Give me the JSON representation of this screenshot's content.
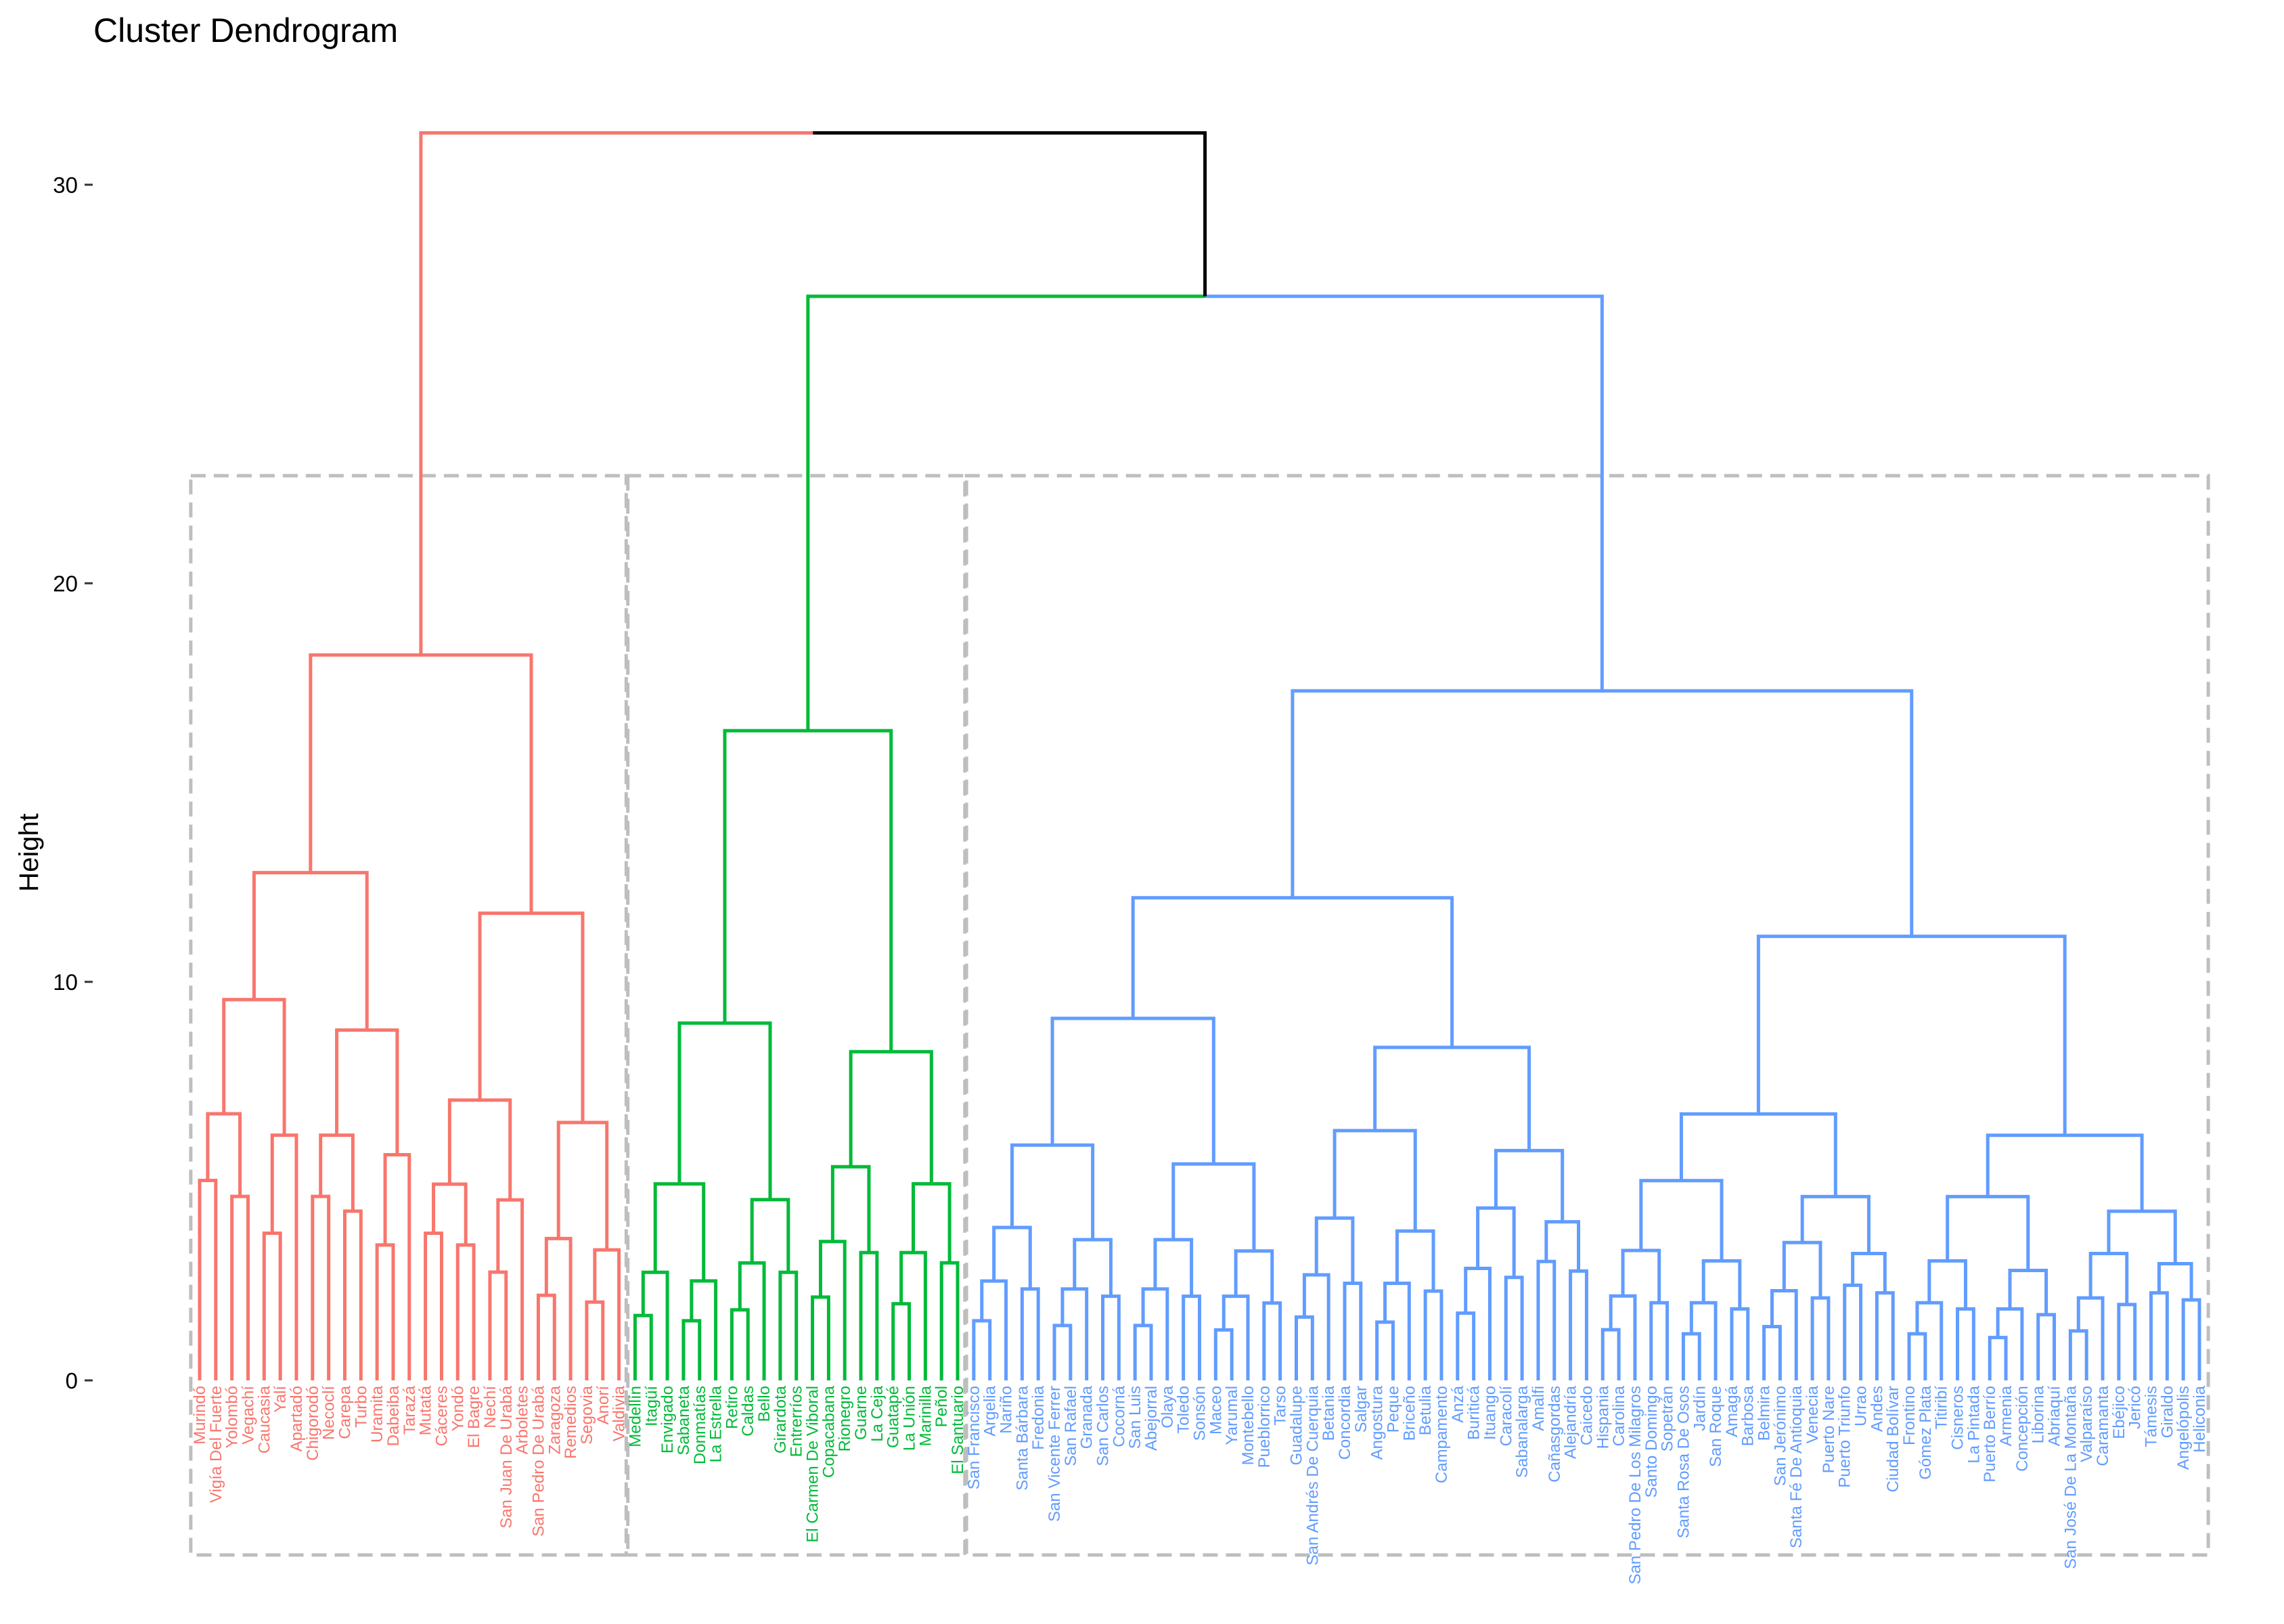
{
  "chart_data": {
    "type": "dendrogram",
    "title": "Cluster Dendrogram",
    "xlabel": "",
    "ylabel": "Height",
    "ylim": [
      0,
      31.3
    ],
    "yticks": [
      0,
      10,
      20,
      30
    ],
    "grid": false,
    "root_height": 31.3,
    "root_color": "#000000",
    "clusters": [
      {
        "color": "#F8766D",
        "height": 18.2,
        "leaves": [
          "Murindó",
          "Vigía Del Fuerte",
          "Yolombó",
          "Vegachí",
          "Caucasia",
          "Yalí",
          "Apartadó",
          "Chigorodó",
          "Necoclí",
          "Carepa",
          "Turbo",
          "Uramita",
          "Dabeiba",
          "Tarazá",
          "Mutatá",
          "Cáceres",
          "Yondó",
          "El Bagre",
          "Nechí",
          "San Juan De Urabá",
          "Arboletes",
          "San Pedro De Urabá",
          "Zaragoza",
          "Remedios",
          "Segovia",
          "Anorí",
          "Valdivia"
        ]
      },
      {
        "color": "#00BA38",
        "height": 16.3,
        "leaves": [
          "Medellín",
          "Itagüí",
          "Envigado",
          "Sabaneta",
          "Donmatías",
          "La Estrella",
          "Retiro",
          "Caldas",
          "Bello",
          "Girardota",
          "Entrerríos",
          "El Carmen De Viboral",
          "Copacabana",
          "Rionegro",
          "Guarne",
          "La Ceja",
          "Guatapé",
          "La Unión",
          "Marinilla",
          "Peñol",
          "El Santuario"
        ]
      },
      {
        "color": "#619CFF",
        "height": 17.3,
        "leaves": [
          "San Francisco",
          "Argelia",
          "Nariño",
          "Santa Bárbara",
          "Fredonia",
          "San Vicente Ferrer",
          "San Rafael",
          "Granada",
          "San Carlos",
          "Cocorná",
          "San Luis",
          "Abejorral",
          "Olaya",
          "Toledo",
          "Sonsón",
          "Maceo",
          "Yarumal",
          "Montebello",
          "Pueblorrico",
          "Tarso",
          "Guadalupe",
          "San Andrés De Cuerquia",
          "Betania",
          "Concordia",
          "Salgar",
          "Angostura",
          "Peque",
          "Briceño",
          "Betulia",
          "Campamento",
          "Anzá",
          "Buriticá",
          "Ituango",
          "Caracolí",
          "Sabanalarga",
          "Amalfi",
          "Cañasgordas",
          "Alejandría",
          "Caicedo",
          "Hispania",
          "Carolina",
          "San Pedro De Los Milagros",
          "Santo Domingo",
          "Sopetrán",
          "Santa Rosa De Osos",
          "Jardín",
          "San Roque",
          "Amagá",
          "Barbosa",
          "Belmira",
          "San Jerónimo",
          "Santa Fé De Antioquia",
          "Venecia",
          "Puerto Nare",
          "Puerto Triunfo",
          "Urrao",
          "Andes",
          "Ciudad Bolívar",
          "Frontino",
          "Gómez Plata",
          "Titiribí",
          "Cisneros",
          "La Pintada",
          "Puerto Berrío",
          "Armenia",
          "Concepción",
          "Liborina",
          "Abriaquí",
          "San José De La Montaña",
          "Valparaíso",
          "Caramanta",
          "Ebéjico",
          "Jericó",
          "Támesis",
          "Giraldo",
          "Angelópolis",
          "Heliconia"
        ]
      }
    ],
    "rect_hide_color": "#BEBEBE"
  }
}
